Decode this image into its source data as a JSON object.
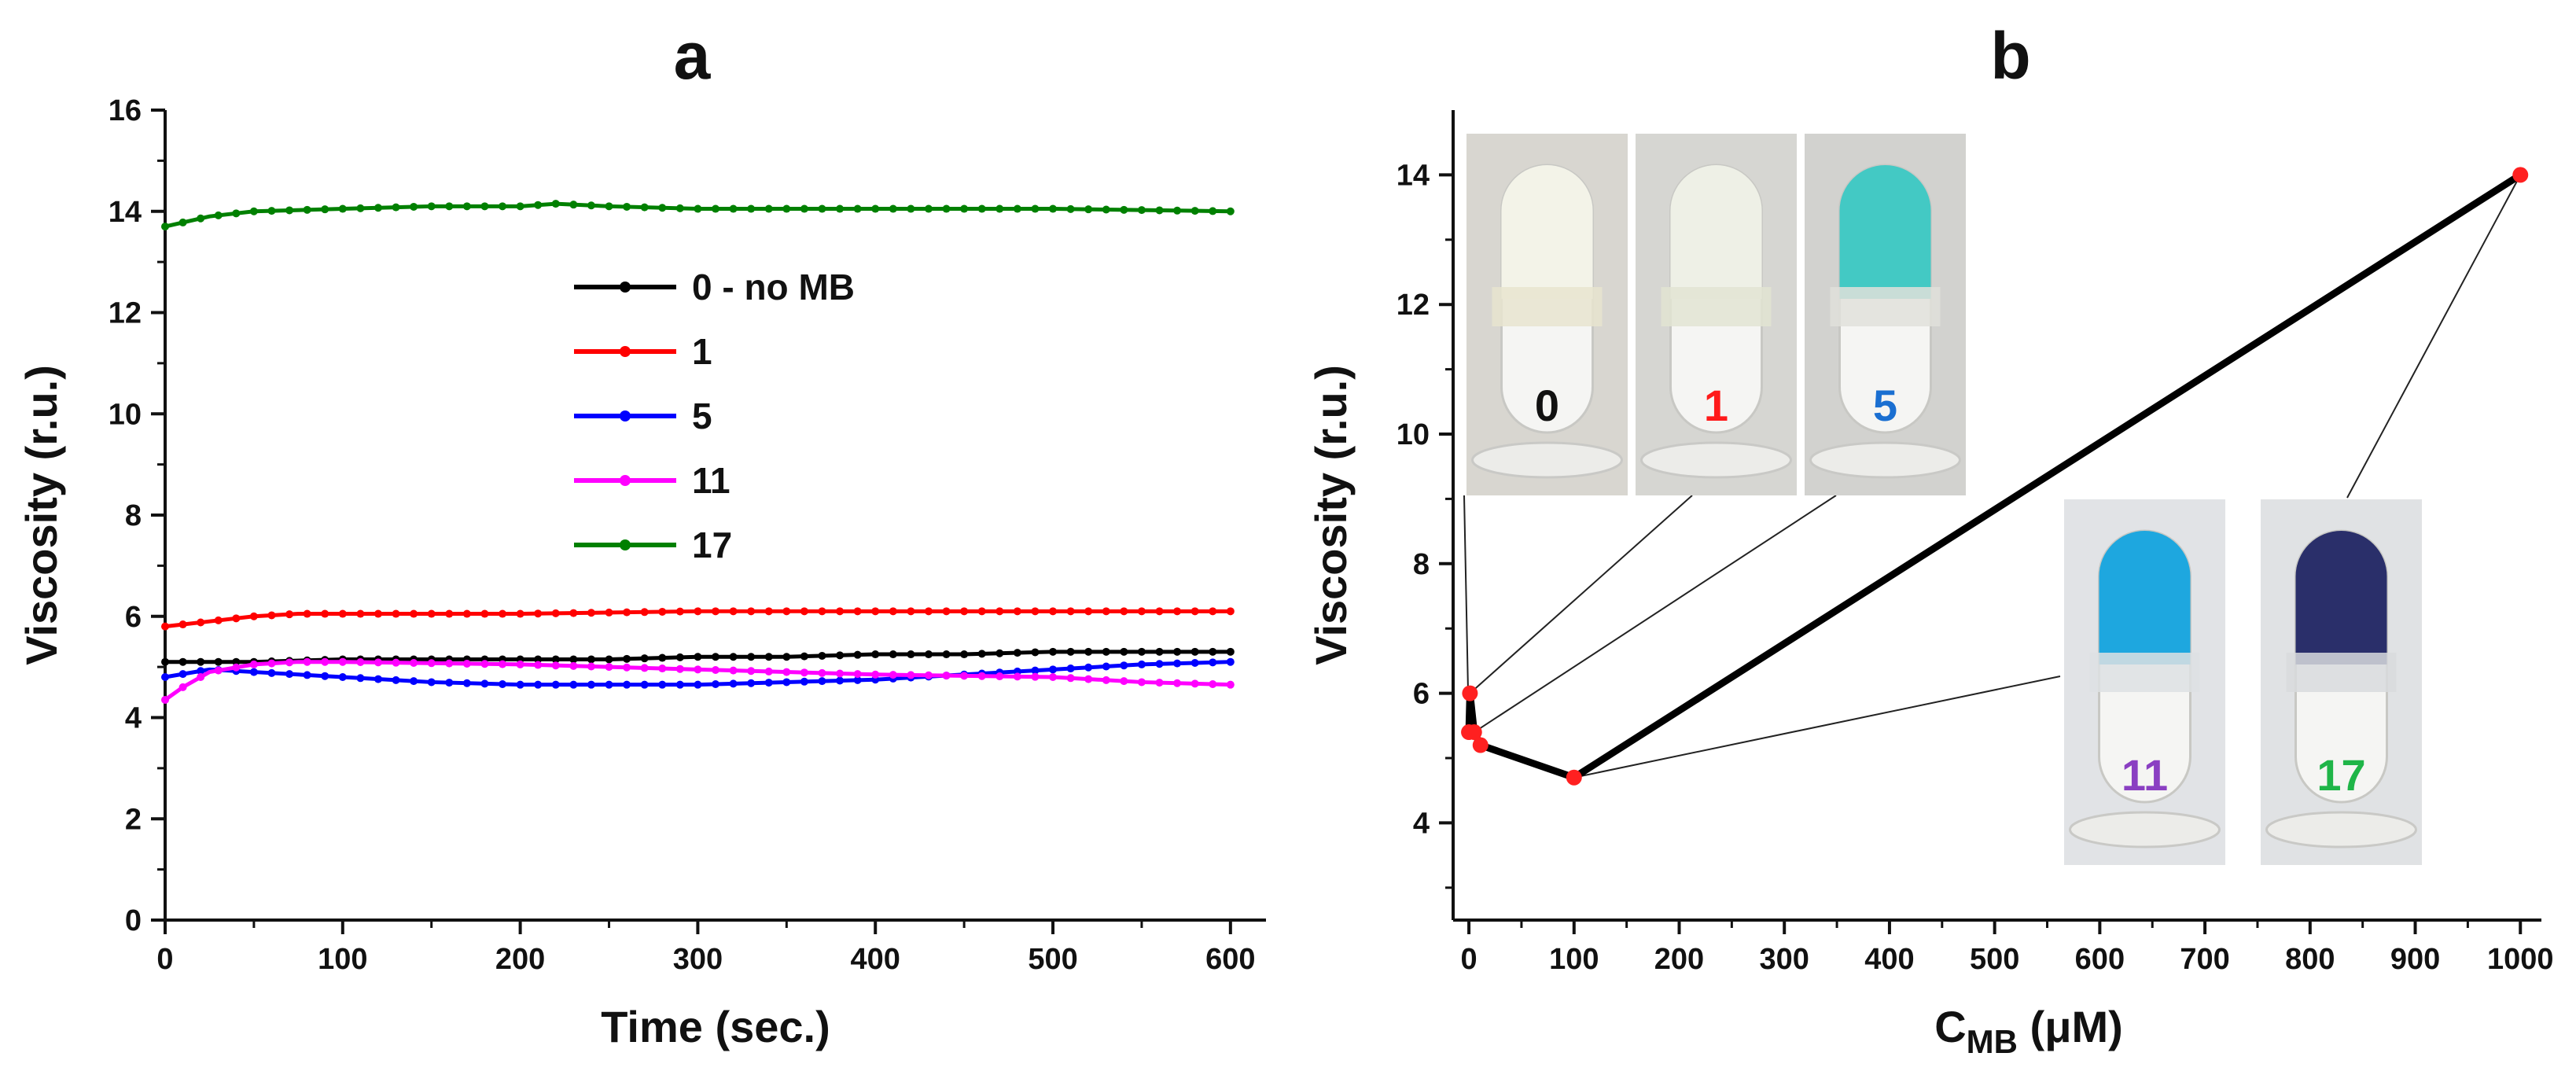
{
  "chart_data": [
    {
      "panel": "a",
      "type": "line",
      "xlabel": "Time (sec.)",
      "ylabel": "Viscosity (r.u.)",
      "xlim": [
        0,
        620
      ],
      "ylim": [
        0,
        16
      ],
      "xticks": [
        0,
        100,
        200,
        300,
        400,
        500,
        600
      ],
      "yticks": [
        0,
        2,
        4,
        6,
        8,
        10,
        12,
        14,
        16
      ],
      "legend_position": "center",
      "series": [
        {
          "name": "0 - no MB",
          "color": "#000000",
          "x": [
            0,
            50,
            100,
            150,
            200,
            250,
            300,
            350,
            400,
            450,
            500,
            550,
            600
          ],
          "y": [
            5.1,
            5.1,
            5.15,
            5.15,
            5.15,
            5.15,
            5.2,
            5.2,
            5.25,
            5.25,
            5.3,
            5.3,
            5.3
          ]
        },
        {
          "name": "1",
          "color": "#ff0000",
          "x": [
            0,
            25,
            50,
            75,
            100,
            200,
            300,
            400,
            500,
            600
          ],
          "y": [
            5.8,
            5.9,
            6.0,
            6.05,
            6.05,
            6.05,
            6.1,
            6.1,
            6.1,
            6.1
          ]
        },
        {
          "name": "5",
          "color": "#0000ff",
          "x": [
            0,
            25,
            50,
            100,
            150,
            200,
            300,
            400,
            450,
            500,
            550,
            600
          ],
          "y": [
            4.8,
            4.95,
            4.9,
            4.8,
            4.7,
            4.65,
            4.65,
            4.75,
            4.85,
            4.95,
            5.05,
            5.1
          ]
        },
        {
          "name": "11",
          "color": "#ff00ff",
          "x": [
            0,
            10,
            25,
            50,
            75,
            100,
            200,
            300,
            400,
            500,
            550,
            600
          ],
          "y": [
            4.35,
            4.6,
            4.9,
            5.05,
            5.1,
            5.1,
            5.05,
            4.95,
            4.85,
            4.8,
            4.7,
            4.65
          ]
        },
        {
          "name": "17",
          "color": "#008000",
          "x": [
            0,
            25,
            50,
            100,
            150,
            200,
            220,
            250,
            300,
            400,
            500,
            600
          ],
          "y": [
            13.7,
            13.9,
            14.0,
            14.05,
            14.1,
            14.1,
            14.15,
            14.1,
            14.05,
            14.05,
            14.05,
            14.0
          ]
        }
      ]
    },
    {
      "panel": "b",
      "type": "line",
      "xlabel_main": "C",
      "xlabel_sub": "MB",
      "xlabel_unit": " (μM)",
      "ylabel": "Viscosity (r.u.)",
      "xlim": [
        -15,
        1020
      ],
      "ylim": [
        2.5,
        15
      ],
      "xticks": [
        0,
        100,
        200,
        300,
        400,
        500,
        600,
        700,
        800,
        900,
        1000
      ],
      "yticks": [
        4,
        6,
        8,
        10,
        12,
        14
      ],
      "series": [
        {
          "name": "",
          "color": "#000000",
          "marker_color": "#ff2020",
          "x": [
            0,
            1,
            5,
            11,
            100,
            1000
          ],
          "y": [
            5.4,
            6.0,
            5.4,
            5.2,
            4.7,
            14.0
          ]
        }
      ],
      "vial_labels": [
        {
          "text": "0",
          "color": "#111111"
        },
        {
          "text": "1",
          "color": "#ff1a1a"
        },
        {
          "text": "5",
          "color": "#1a6fd1"
        },
        {
          "text": "11",
          "color": "#8a3fc2"
        },
        {
          "text": "17",
          "color": "#1fb548"
        }
      ]
    }
  ],
  "panels": {
    "a": "a",
    "b": "b"
  }
}
